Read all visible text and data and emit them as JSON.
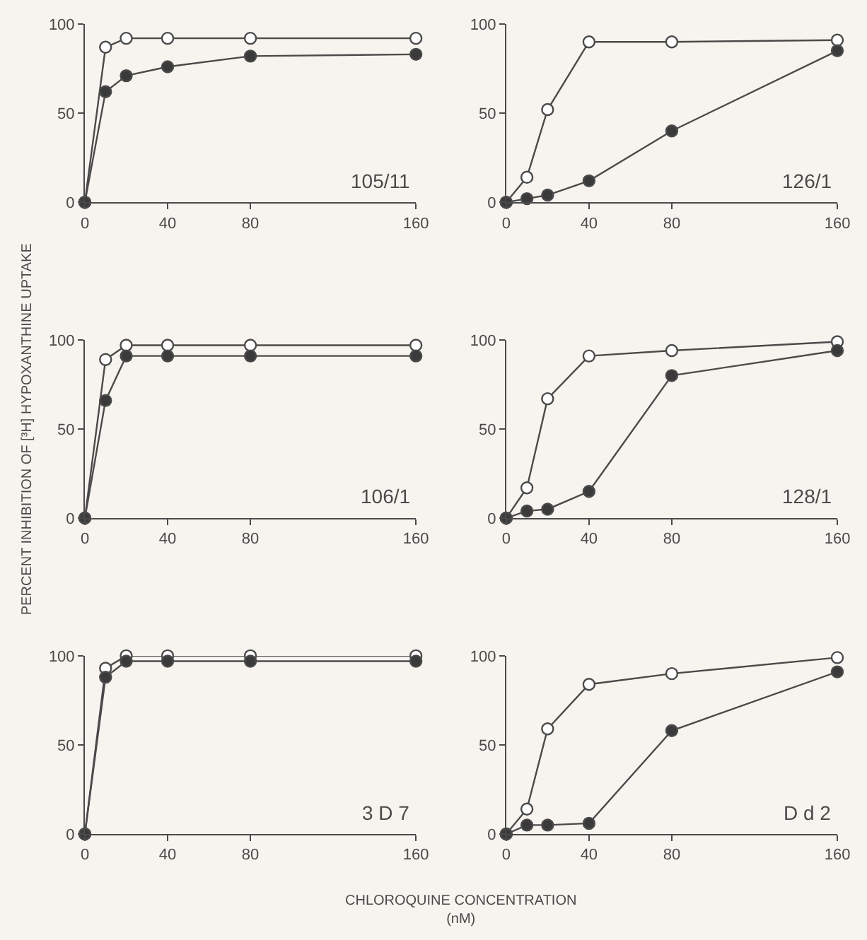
{
  "chart_data": [
    {
      "type": "line",
      "x": [
        0,
        10,
        20,
        40,
        80,
        160
      ],
      "xlim": [
        0,
        160
      ],
      "xticks": [
        0,
        40,
        80,
        160
      ],
      "ylim": [
        0,
        100
      ],
      "yticks": [
        0,
        50,
        100
      ],
      "grid": false,
      "marker": "circle",
      "line_style": "solid",
      "annotations": [
        "105/11"
      ],
      "series": [
        {
          "color": "#ffffff",
          "values": [
            0,
            87,
            92,
            92,
            92,
            92
          ]
        },
        {
          "color": "#3a3a3a",
          "values": [
            0,
            62,
            71,
            76,
            82,
            83
          ]
        }
      ]
    },
    {
      "type": "line",
      "x": [
        0,
        10,
        20,
        40,
        80,
        160
      ],
      "xlim": [
        0,
        160
      ],
      "xticks": [
        0,
        40,
        80,
        160
      ],
      "ylim": [
        0,
        100
      ],
      "yticks": [
        0,
        50,
        100
      ],
      "grid": false,
      "marker": "circle",
      "line_style": "solid",
      "annotations": [
        "126/1"
      ],
      "series": [
        {
          "color": "#ffffff",
          "values": [
            0,
            14,
            52,
            90,
            90,
            91
          ]
        },
        {
          "color": "#3a3a3a",
          "values": [
            0,
            2,
            4,
            12,
            40,
            85
          ]
        }
      ]
    },
    {
      "type": "line",
      "x": [
        0,
        10,
        20,
        40,
        80,
        160
      ],
      "xlim": [
        0,
        160
      ],
      "xticks": [
        0,
        40,
        80,
        160
      ],
      "ylim": [
        0,
        100
      ],
      "yticks": [
        0,
        50,
        100
      ],
      "grid": false,
      "marker": "circle",
      "line_style": "solid",
      "annotations": [
        "106/1"
      ],
      "ylabel": "PERCENT INHIBITION OF [³H] HYPOXANTHINE UPTAKE",
      "series": [
        {
          "color": "#ffffff",
          "values": [
            0,
            89,
            97,
            97,
            97,
            97
          ]
        },
        {
          "color": "#3a3a3a",
          "values": [
            0,
            66,
            91,
            91,
            91,
            91
          ]
        }
      ]
    },
    {
      "type": "line",
      "x": [
        0,
        10,
        20,
        40,
        80,
        160
      ],
      "xlim": [
        0,
        160
      ],
      "xticks": [
        0,
        40,
        80,
        160
      ],
      "ylim": [
        0,
        100
      ],
      "yticks": [
        0,
        50,
        100
      ],
      "grid": false,
      "marker": "circle",
      "line_style": "solid",
      "annotations": [
        "128/1"
      ],
      "series": [
        {
          "color": "#ffffff",
          "values": [
            0,
            17,
            67,
            91,
            94,
            99
          ]
        },
        {
          "color": "#3a3a3a",
          "values": [
            0,
            4,
            5,
            15,
            80,
            94
          ]
        }
      ]
    },
    {
      "type": "line",
      "x": [
        0,
        10,
        20,
        40,
        80,
        160
      ],
      "xlim": [
        0,
        160
      ],
      "xticks": [
        0,
        40,
        80,
        160
      ],
      "ylim": [
        0,
        100
      ],
      "yticks": [
        0,
        50,
        100
      ],
      "grid": false,
      "marker": "circle",
      "line_style": "solid",
      "annotations": [
        "3 D 7"
      ],
      "xlabel": "CHLOROQUINE CONCENTRATION\n(nM)",
      "series": [
        {
          "color": "#ffffff",
          "values": [
            0,
            93,
            100,
            100,
            100,
            100
          ]
        },
        {
          "color": "#3a3a3a",
          "values": [
            0,
            88,
            97,
            97,
            97,
            97
          ]
        }
      ]
    },
    {
      "type": "line",
      "x": [
        0,
        10,
        20,
        40,
        80,
        160
      ],
      "xlim": [
        0,
        160
      ],
      "xticks": [
        0,
        40,
        80,
        160
      ],
      "ylim": [
        0,
        100
      ],
      "yticks": [
        0,
        50,
        100
      ],
      "grid": false,
      "marker": "circle",
      "line_style": "solid",
      "annotations": [
        "D d 2"
      ],
      "series": [
        {
          "color": "#ffffff",
          "values": [
            0,
            14,
            59,
            84,
            90,
            99
          ]
        },
        {
          "color": "#3a3a3a",
          "values": [
            0,
            5,
            5,
            6,
            58,
            91
          ]
        }
      ]
    }
  ]
}
